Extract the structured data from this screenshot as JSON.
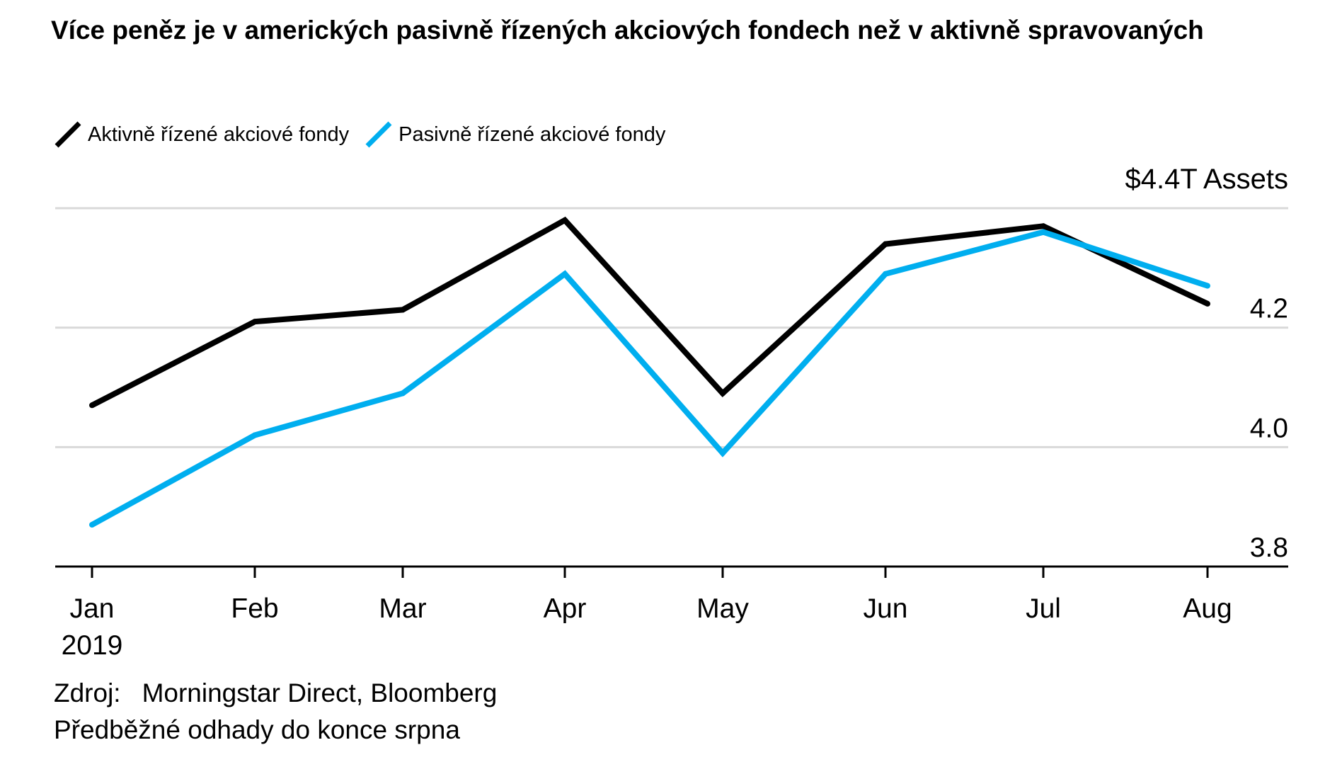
{
  "chart_data": {
    "type": "line",
    "title": "Více peněz je v amerických pasivně řízených akciových fondech než v aktivně spravovaných",
    "categories": [
      "Jan",
      "Feb",
      "Mar",
      "Apr",
      "May",
      "Jun",
      "Jul",
      "Aug"
    ],
    "x_sublabel": "2019",
    "ylim": [
      3.8,
      4.4
    ],
    "yticks": [
      3.8,
      4.0,
      4.2
    ],
    "y_top_label": "$4.4T Assets",
    "grid": true,
    "legend_position": "top-left",
    "series": [
      {
        "name": "Aktivně řízené akciové fondy",
        "color": "#000000",
        "values": [
          4.07,
          4.21,
          4.23,
          4.38,
          4.09,
          4.34,
          4.37,
          4.24
        ]
      },
      {
        "name": "Pasivně řízené akciové fondy",
        "color": "#00aeef",
        "values": [
          3.87,
          4.02,
          4.09,
          4.29,
          3.99,
          4.29,
          4.36,
          4.27
        ]
      }
    ],
    "source_label": "Zdroj:",
    "source": "Morningstar Direct, Bloomberg",
    "note": "Předběžné odhady do konce srpna"
  }
}
